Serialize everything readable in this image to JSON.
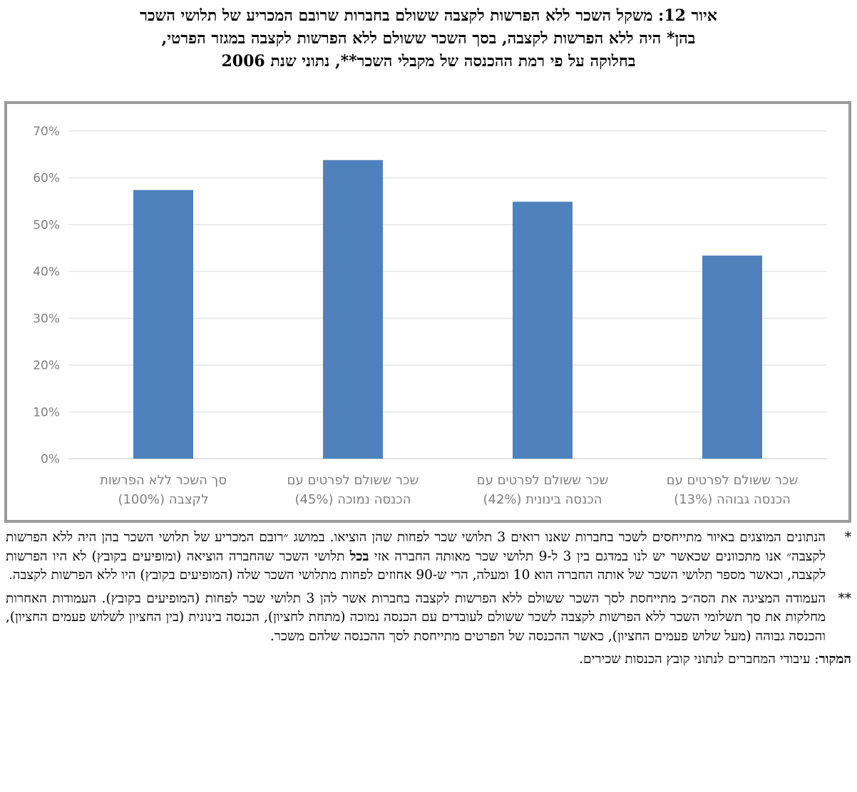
{
  "title": {
    "line1": "איור 12: משקל השכר ללא הפרשות לקצבה ששולם בחברות שרובם המכריע של תלושי השכר",
    "line2": "בהן* היה ללא הפרשות לקצבה, בסך השכר ששולם ללא הפרשות לקצבה במגזר הפרטי,",
    "line3": "בחלוקה על פי רמת ההכנסה של מקבלי השכר**, נתוני שנת 2006"
  },
  "chart_data": {
    "type": "bar",
    "title": "",
    "xlabel": "",
    "ylabel": "",
    "ylim": [
      0,
      0.7
    ],
    "yticks": [
      "0%",
      "10%",
      "20%",
      "30%",
      "40%",
      "50%",
      "60%",
      "70%"
    ],
    "grid": true,
    "categories": [
      {
        "line1": "סך השכר ללא הפרשות",
        "line2": "לקצבה (100%)"
      },
      {
        "line1": "שכר ששולם לפרטים עם",
        "line2": "הכנסה נמוכה (45%)"
      },
      {
        "line1": "שכר ששולם לפרטים עם",
        "line2": "הכנסה בינונית (42%)"
      },
      {
        "line1": "שכר ששולם לפרטים עם",
        "line2": "הכנסה גבוהה (13%)"
      }
    ],
    "values": [
      0.574,
      0.638,
      0.549,
      0.434
    ],
    "bar_color": "#4f81bd",
    "grid_color": "#d9d9d9",
    "label_color": "#7f7f7f"
  },
  "notes": {
    "note1_mark": "*",
    "note1_part1": "הנתונים המוצגים באיור מתייחסים לשכר בחברות שאנו רואים 3 תלושי שכר לפחות שהן הוציאו. במושג ״רובם המכריע של תלושי השכר בהן היה ללא הפרשות לקצבה״ אנו מתכוונים שכאשר יש לנו במדגם בין 3 ל-9 תלושי שכר מאותה החברה אזי",
    "note1_bold": "בכל",
    "note1_part2": "תלושי השכר שהחברה הוציאה (ומופיעים בקובץ) לא היו הפרשות לקצבה, וכאשר מספר תלושי השכר של אותה החברה הוא 10 ומעלה, הרי ש-90 אחוזים לפחות מתלושי השכר שלה (המופיעים בקובץ) היו ללא הפרשות לקצבה.",
    "note2_mark": "**",
    "note2_text": "העמודה המציגה את הסה״כ מתייחסת לסך השכר ששולם ללא הפרשות לקצבה בחברות אשר להן 3 תלושי שכר לפחות (המופיעים בקובץ). העמודות האחרות מחלקות את סך תשלומי השכר ללא הפרשות לקצבה לשכר ששולם לעובדים עם הכנסה נמוכה (מתחת לחציון), הכנסה בינונית (בין החציון לשלוש פעמים החציון), והכנסה גבוהה (מעל שלוש פעמים החציון), כאשר ההכנסה של הפרטים מתייחסת לסך ההכנסה שלהם משכר.",
    "source_label": "המקור",
    "source_text": ": עיבודי המחברים לנתוני קובץ הכנסות שכירים."
  }
}
